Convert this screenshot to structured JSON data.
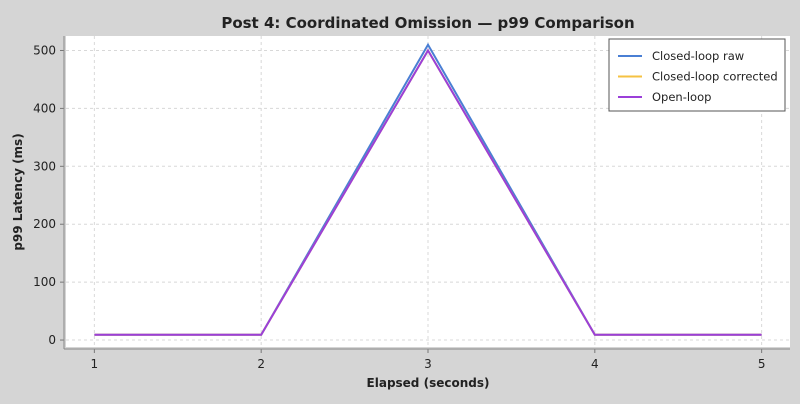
{
  "chart_data": {
    "type": "line",
    "title": "Post 4: Coordinated Omission — p99 Comparison",
    "xlabel": "Elapsed (seconds)",
    "ylabel": "p99 Latency (ms)",
    "x": [
      1,
      2,
      3,
      4,
      5
    ],
    "xlim": [
      0.83,
      5.17
    ],
    "ylim": [
      -12,
      525
    ],
    "xticks": [
      "1",
      "2",
      "3",
      "4",
      "5"
    ],
    "yticks": [
      "0",
      "100",
      "200",
      "300",
      "400",
      "500"
    ],
    "grid": true,
    "legend_position": "top-right",
    "series": [
      {
        "name": "Closed-loop raw",
        "color": "#4a7fd4",
        "values": [
          9,
          9,
          510,
          9,
          9
        ]
      },
      {
        "name": "Closed-loop corrected",
        "color": "#f5c242",
        "values": [
          9,
          9,
          500,
          9,
          9
        ]
      },
      {
        "name": "Open-loop",
        "color": "#9b3fd9",
        "values": [
          9,
          9,
          500,
          9,
          9
        ]
      }
    ]
  }
}
